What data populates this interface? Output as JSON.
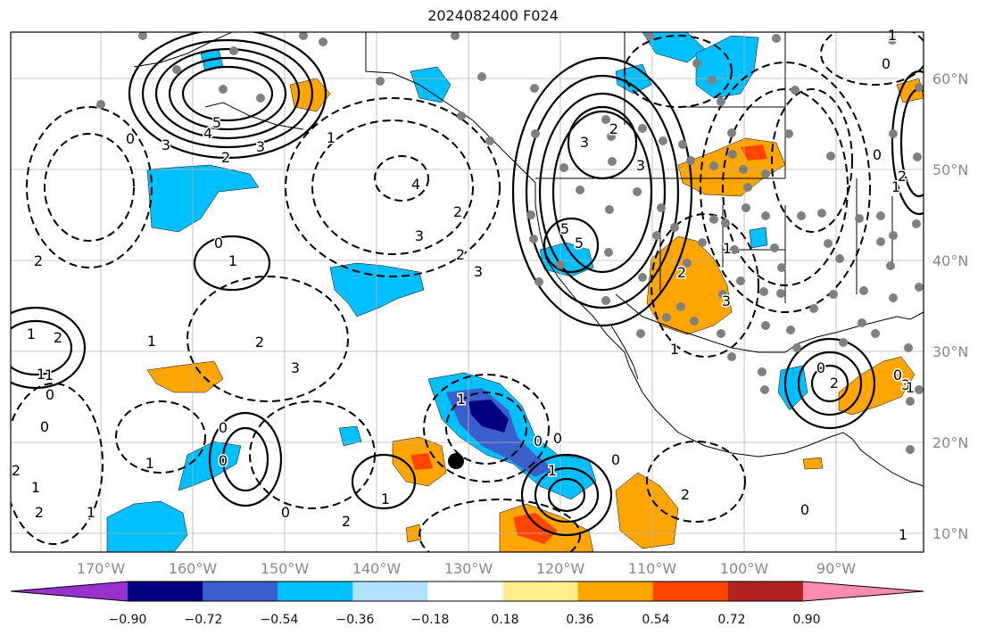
{
  "title": "2024082400 F024",
  "lat_labels": [
    "60°N",
    "50°N",
    "40°N",
    "30°N",
    "20°N",
    "10°N"
  ],
  "lon_labels": [
    "170°W",
    "160°W",
    "150°W",
    "140°W",
    "130°W",
    "120°W",
    "110°W",
    "100°W",
    "90°W"
  ],
  "colorbar": {
    "tick_labels": [
      "−0.90",
      "−0.72",
      "−0.54",
      "−0.36",
      "−0.18",
      "0.18",
      "0.36",
      "0.54",
      "0.72",
      "0.90"
    ],
    "colors": [
      "#9932cc",
      "#000080",
      "#3a5fcd",
      "#00bfff",
      "#b0e2ff",
      "#ffffff",
      "#ffec8b",
      "#ffa500",
      "#ff4500",
      "#b22222",
      "#ff8ab0"
    ],
    "extend": "both"
  },
  "contour_labels": [
    "5",
    "4",
    "3",
    "2",
    "3",
    "0",
    "1",
    "4",
    "3",
    "2",
    "2",
    "3",
    "5",
    "3",
    "2",
    "3",
    "5",
    "0",
    "1",
    "2",
    "1",
    "2",
    "3",
    "1",
    "0",
    "0",
    "1",
    "2",
    "1",
    "2",
    "1",
    "0",
    "2",
    "1",
    "1",
    "0",
    "1",
    "0",
    "2",
    "0",
    "1",
    "0",
    "0",
    "0",
    "1",
    "2",
    "1",
    "2",
    "1",
    "0",
    "0",
    "1",
    "1",
    "2",
    "3",
    "1",
    "0",
    "2",
    "3",
    "0",
    "1"
  ],
  "colors": {
    "purple": "#9932cc",
    "navy": "#000080",
    "blue": "#3a5fcd",
    "sky": "#00bfff",
    "lightblue": "#b0e2ff",
    "yellow": "#ffec8b",
    "orange": "#ffa500",
    "red": "#ff4500",
    "darkred": "#b22222",
    "pink": "#ff8ab0",
    "station": "#808080",
    "grid": "#b5b5b5",
    "label_gray": "#888888"
  },
  "marker_icon": "black-circle-icon"
}
